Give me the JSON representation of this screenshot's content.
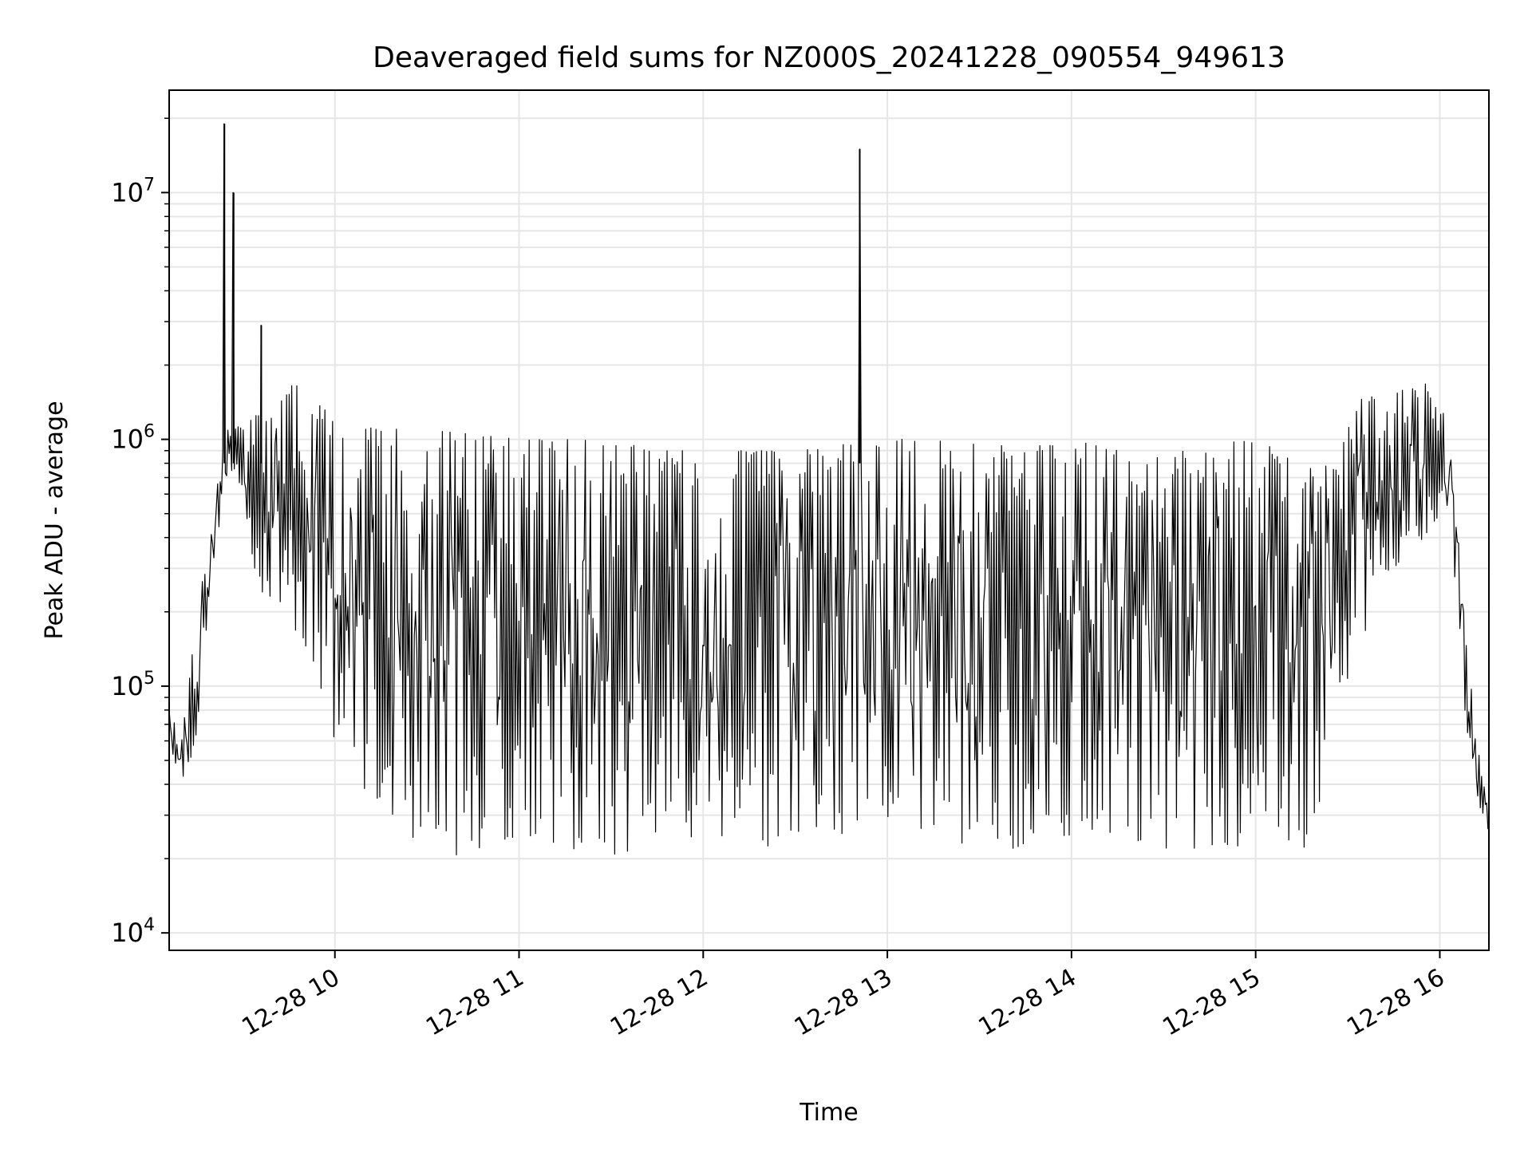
{
  "chart_data": {
    "type": "line",
    "title": "Deaveraged field sums for NZ000S_20241228_090554_949613",
    "xlabel": "Time",
    "ylabel": "Peak ADU - average",
    "yscale": "log",
    "ylim": [
      8500,
      26000000
    ],
    "xlim": [
      "2024-12-28 09:06",
      "2024-12-28 16:16"
    ],
    "grid": true,
    "line_color": "#000000",
    "grid_color": "#e6e6e6",
    "x_ticks": [
      "2024-12-28 10:00",
      "2024-12-28 11:00",
      "2024-12-28 12:00",
      "2024-12-28 13:00",
      "2024-12-28 14:00",
      "2024-12-28 15:00",
      "2024-12-28 16:00"
    ],
    "x_tick_labels": [
      "12-28 10",
      "12-28 11",
      "12-28 12",
      "12-28 13",
      "12-28 14",
      "12-28 15",
      "12-28 16"
    ],
    "y_ticks": [
      10000,
      100000,
      1000000,
      10000000
    ],
    "y_tick_labels": [
      {
        "base": "10",
        "exp": "4"
      },
      {
        "base": "10",
        "exp": "5"
      },
      {
        "base": "10",
        "exp": "6"
      },
      {
        "base": "10",
        "exp": "7"
      }
    ],
    "series": [
      {
        "values_note": "high-frequency noisy series; shown via upper and lower envelopes",
        "x": [
          "2024-12-28 09:06",
          "2024-12-28 09:10",
          "2024-12-28 09:15",
          "2024-12-28 09:20",
          "2024-12-28 09:25",
          "2024-12-28 09:30",
          "2024-12-28 09:35",
          "2024-12-28 09:40",
          "2024-12-28 09:45",
          "2024-12-28 09:50",
          "2024-12-28 10:00",
          "2024-12-28 10:15",
          "2024-12-28 10:30",
          "2024-12-28 10:45",
          "2024-12-28 11:00",
          "2024-12-28 11:15",
          "2024-12-28 11:30",
          "2024-12-28 11:45",
          "2024-12-28 12:00",
          "2024-12-28 12:15",
          "2024-12-28 12:30",
          "2024-12-28 12:45",
          "2024-12-28 13:00",
          "2024-12-28 13:15",
          "2024-12-28 13:30",
          "2024-12-28 13:45",
          "2024-12-28 14:00",
          "2024-12-28 14:15",
          "2024-12-28 14:30",
          "2024-12-28 14:45",
          "2024-12-28 15:00",
          "2024-12-28 15:15",
          "2024-12-28 15:25",
          "2024-12-28 15:35",
          "2024-12-28 15:45",
          "2024-12-28 15:55",
          "2024-12-28 16:00",
          "2024-12-28 16:04",
          "2024-12-28 16:08",
          "2024-12-28 16:12",
          "2024-12-28 16:16"
        ],
        "upper": [
          80000,
          60000,
          200000,
          500000,
          1200000,
          1100000,
          1300000,
          1500000,
          1700000,
          1600000,
          1200000,
          1100000,
          1100000,
          1050000,
          1000000,
          1000000,
          1000000,
          900000,
          900000,
          900000,
          900000,
          950000,
          1000000,
          1000000,
          950000,
          950000,
          1000000,
          900000,
          900000,
          950000,
          1000000,
          800000,
          800000,
          1500000,
          1600000,
          1700000,
          1600000,
          1100000,
          200000,
          60000,
          30000
        ],
        "lower": [
          60000,
          40000,
          60000,
          300000,
          700000,
          500000,
          250000,
          200000,
          180000,
          150000,
          60000,
          30000,
          22000,
          20000,
          25000,
          22000,
          20000,
          22000,
          25000,
          22000,
          22000,
          20000,
          25000,
          25000,
          22000,
          22000,
          25000,
          25000,
          22000,
          22000,
          22000,
          20000,
          50000,
          150000,
          300000,
          400000,
          500000,
          300000,
          80000,
          35000,
          24000
        ]
      }
    ],
    "spikes": [
      {
        "x": "2024-12-28 09:24",
        "value": 19000000
      },
      {
        "x": "2024-12-28 09:27",
        "value": 10000000
      },
      {
        "x": "2024-12-28 09:36",
        "value": 2900000
      },
      {
        "x": "2024-12-28 12:51",
        "value": 15000000
      }
    ]
  }
}
